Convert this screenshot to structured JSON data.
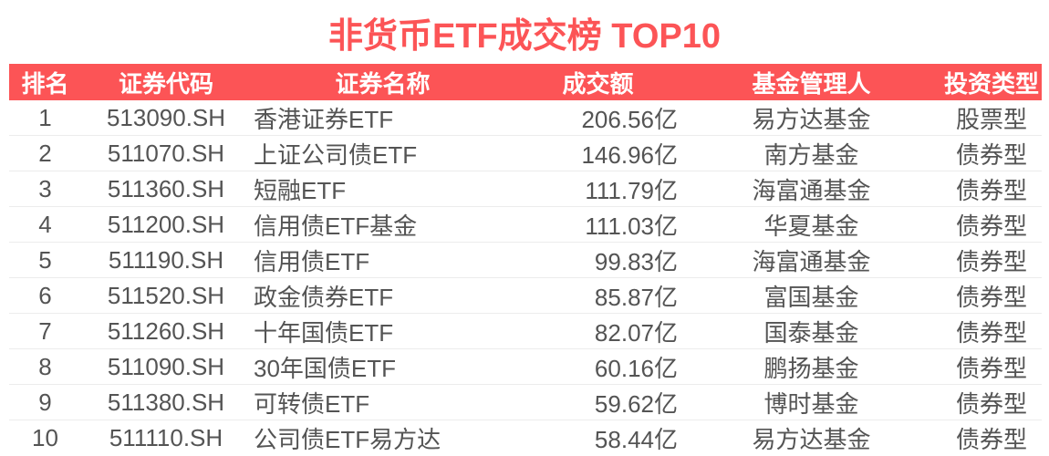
{
  "title": "非货币ETF成交榜 TOP10",
  "colors": {
    "accent": "#fc5456",
    "header_text": "#ffffff",
    "body_text": "#545454",
    "row_border": "#ececec"
  },
  "chart_data": {
    "type": "table",
    "title": "非货币ETF成交榜 TOP10",
    "columns": [
      "排名",
      "证券代码",
      "证券名称",
      "成交额",
      "基金管理人",
      "投资类型"
    ],
    "rows": [
      [
        "1",
        "513090.SH",
        "香港证券ETF",
        "206.56亿",
        "易方达基金",
        "股票型"
      ],
      [
        "2",
        "511070.SH",
        "上证公司债ETF",
        "146.96亿",
        "南方基金",
        "债券型"
      ],
      [
        "3",
        "511360.SH",
        "短融ETF",
        "111.79亿",
        "海富通基金",
        "债券型"
      ],
      [
        "4",
        "511200.SH",
        "信用债ETF基金",
        "111.03亿",
        "华夏基金",
        "债券型"
      ],
      [
        "5",
        "511190.SH",
        "信用债ETF",
        "99.83亿",
        "海富通基金",
        "债券型"
      ],
      [
        "6",
        "511520.SH",
        "政金债券ETF",
        "85.87亿",
        "富国基金",
        "债券型"
      ],
      [
        "7",
        "511260.SH",
        "十年国债ETF",
        "82.07亿",
        "国泰基金",
        "债券型"
      ],
      [
        "8",
        "511090.SH",
        "30年国债ETF",
        "60.16亿",
        "鹏扬基金",
        "债券型"
      ],
      [
        "9",
        "511380.SH",
        "可转债ETF",
        "59.62亿",
        "博时基金",
        "债券型"
      ],
      [
        "10",
        "511110.SH",
        "公司债ETF易方达",
        "58.44亿",
        "易方达基金",
        "债券型"
      ]
    ]
  }
}
